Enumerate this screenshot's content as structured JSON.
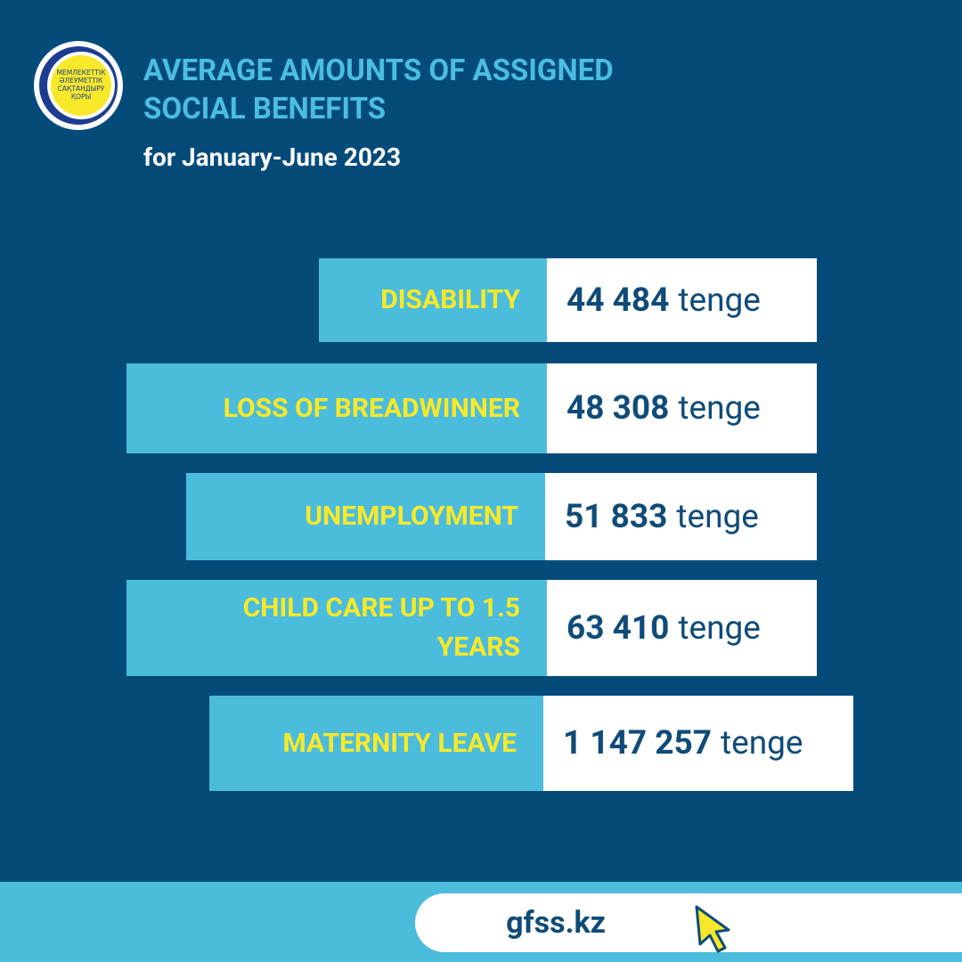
{
  "logo": {
    "lines": [
      "МЕМЛЕКЕТТІК",
      "ӘЛЕУМЕТТІК",
      "САҚТАНДЫРУ",
      "ҚОРЫ"
    ]
  },
  "header": {
    "title_lines": [
      "AVERAGE AMOUNTS OF ASSIGNED",
      "SOCIAL BENEFITS"
    ],
    "subtitle": "for January-June 2023"
  },
  "items": [
    {
      "label": "DISABILITY",
      "amount": "44 484",
      "unit": "tenge"
    },
    {
      "label": "LOSS OF BREADWINNER",
      "amount": "48 308",
      "unit": "tenge"
    },
    {
      "label": "UNEMPLOYMENT",
      "amount": "51 833",
      "unit": "tenge"
    },
    {
      "label": "CHILD CARE UP TO 1.5 YEARS",
      "amount": "63 410",
      "unit": "tenge"
    },
    {
      "label": "MATERNITY LEAVE",
      "amount": "1 147 257",
      "unit": "tenge"
    }
  ],
  "footer": {
    "url": "gfss.kz"
  }
}
